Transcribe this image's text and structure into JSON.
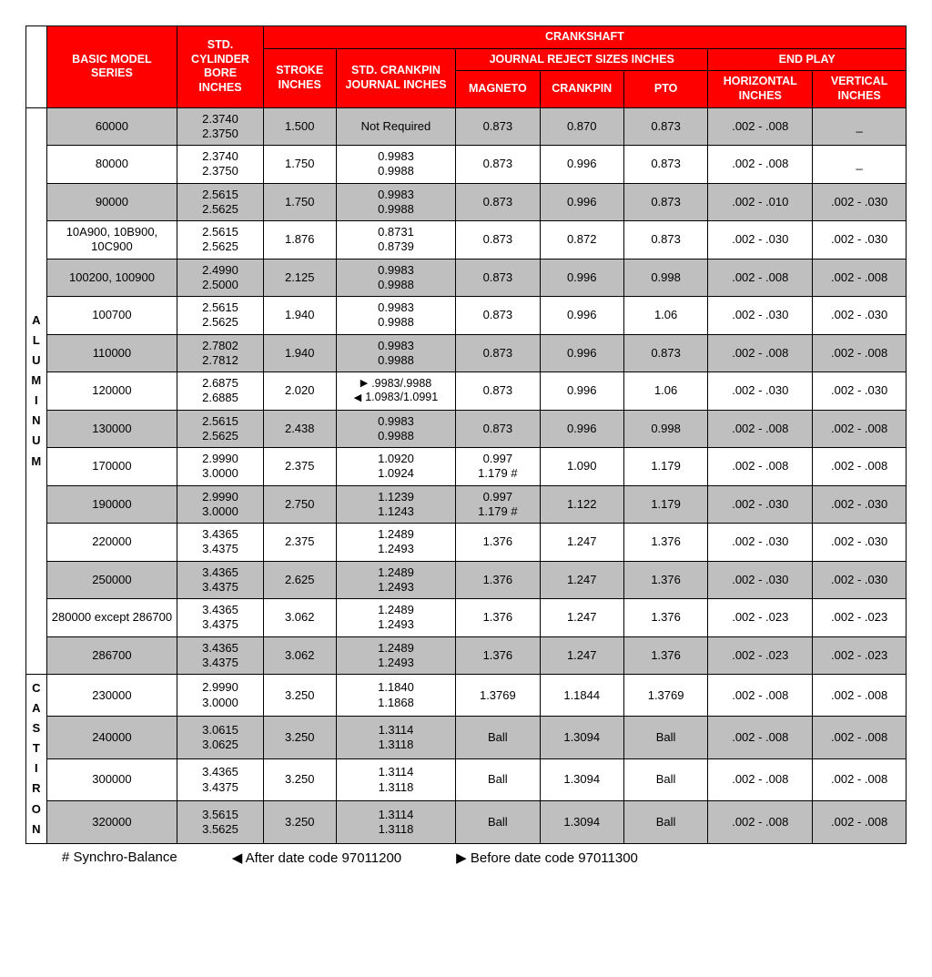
{
  "header": {
    "crankshaft": "CRANKSHAFT",
    "journal_reject": "JOURNAL REJECT SIZES INCHES",
    "end_play": "END PLAY",
    "model": "BASIC MODEL SERIES",
    "bore": "STD. CYLINDER BORE INCHES",
    "stroke": "STROKE INCHES",
    "crankpin_journal": "STD. CRANKPIN JOURNAL INCHES",
    "magneto": "MAGNETO",
    "crankpin": "CRANKPIN",
    "pto": "PTO",
    "horizontal": "HORIZONTAL INCHES",
    "vertical": "VERTICAL INCHES",
    "colors": {
      "header_bg": "#ff0000",
      "header_fg": "#ffffff",
      "border": "#000000",
      "shaded_bg": "#bfbfbf",
      "plain_bg": "#ffffff"
    }
  },
  "side_labels": {
    "aluminum": "ALUMINUM",
    "cast_iron": "CAST IRON"
  },
  "footnotes": {
    "synchro": "# Synchro-Balance",
    "after": "◀ After date code 97011200",
    "before": "▶ Before date code 97011300"
  },
  "rows": [
    {
      "shade": true,
      "model": "60000",
      "bore": [
        "2.3740",
        "2.3750"
      ],
      "stroke": "1.500",
      "cp": [
        "Not Required"
      ],
      "mag": "0.873",
      "ckpin": "0.870",
      "pto": "0.873",
      "h": ".002 - .008",
      "v": "_"
    },
    {
      "shade": false,
      "model": "80000",
      "bore": [
        "2.3740",
        "2.3750"
      ],
      "stroke": "1.750",
      "cp": [
        "0.9983",
        "0.9988"
      ],
      "mag": "0.873",
      "ckpin": "0.996",
      "pto": "0.873",
      "h": ".002 - .008",
      "v": "_"
    },
    {
      "shade": true,
      "model": "90000",
      "bore": [
        "2.5615",
        "2.5625"
      ],
      "stroke": "1.750",
      "cp": [
        "0.9983",
        "0.9988"
      ],
      "mag": "0.873",
      "ckpin": "0.996",
      "pto": "0.873",
      "h": ".002 - .010",
      "v": ".002 - .030"
    },
    {
      "shade": false,
      "model": "10A900, 10B900, 10C900",
      "bore": [
        "2.5615",
        "2.5625"
      ],
      "stroke": "1.876",
      "cp": [
        "0.8731",
        "0.8739"
      ],
      "mag": "0.873",
      "ckpin": "0.872",
      "pto": "0.873",
      "h": ".002 - .030",
      "v": ".002 - .030"
    },
    {
      "shade": true,
      "model": "100200, 100900",
      "bore": [
        "2.4990",
        "2.5000"
      ],
      "stroke": "2.125",
      "cp": [
        "0.9983",
        "0.9988"
      ],
      "mag": "0.873",
      "ckpin": "0.996",
      "pto": "0.998",
      "h": ".002 - .008",
      "v": ".002 - .008"
    },
    {
      "shade": false,
      "model": "100700",
      "bore": [
        "2.5615",
        "2.5625"
      ],
      "stroke": "1.940",
      "cp": [
        "0.9983",
        "0.9988"
      ],
      "mag": "0.873",
      "ckpin": "0.996",
      "pto": "1.06",
      "h": ".002 - .030",
      "v": ".002 - .030"
    },
    {
      "shade": true,
      "model": "110000",
      "bore": [
        "2.7802",
        "2.7812"
      ],
      "stroke": "1.940",
      "cp": [
        "0.9983",
        "0.9988"
      ],
      "mag": "0.873",
      "ckpin": "0.996",
      "pto": "0.873",
      "h": ".002 - .008",
      "v": ".002 - .008"
    },
    {
      "shade": false,
      "model": "120000",
      "bore": [
        "2.6875",
        "2.6885"
      ],
      "stroke": "2.020",
      "cp_special": {
        "before": ".9983/.9988",
        "after": "1.0983/1.0991"
      },
      "mag": "0.873",
      "ckpin": "0.996",
      "pto": "1.06",
      "h": ".002 - .030",
      "v": ".002 - .030"
    },
    {
      "shade": true,
      "model": "130000",
      "bore": [
        "2.5615",
        "2.5625"
      ],
      "stroke": "2.438",
      "cp": [
        "0.9983",
        "0.9988"
      ],
      "mag": "0.873",
      "ckpin": "0.996",
      "pto": "0.998",
      "h": ".002 - .008",
      "v": ".002 - .008"
    },
    {
      "shade": false,
      "model": "170000",
      "bore": [
        "2.9990",
        "3.0000"
      ],
      "stroke": "2.375",
      "cp": [
        "1.0920",
        "1.0924"
      ],
      "mag": [
        "0.997",
        "1.179 #"
      ],
      "ckpin": "1.090",
      "pto": "1.179",
      "h": ".002 - .008",
      "v": ".002 - .008"
    },
    {
      "shade": true,
      "model": "190000",
      "bore": [
        "2.9990",
        "3.0000"
      ],
      "stroke": "2.750",
      "cp": [
        "1.1239",
        "1.1243"
      ],
      "mag": [
        "0.997",
        "1.179 #"
      ],
      "ckpin": "1.122",
      "pto": "1.179",
      "h": ".002 - .030",
      "v": ".002 - .030"
    },
    {
      "shade": false,
      "model": "220000",
      "bore": [
        "3.4365",
        "3.4375"
      ],
      "stroke": "2.375",
      "cp": [
        "1.2489",
        "1.2493"
      ],
      "mag": "1.376",
      "ckpin": "1.247",
      "pto": "1.376",
      "h": ".002 - .030",
      "v": ".002 - .030"
    },
    {
      "shade": true,
      "model": "250000",
      "bore": [
        "3.4365",
        "3.4375"
      ],
      "stroke": "2.625",
      "cp": [
        "1.2489",
        "1.2493"
      ],
      "mag": "1.376",
      "ckpin": "1.247",
      "pto": "1.376",
      "h": ".002 - .030",
      "v": ".002 - .030"
    },
    {
      "shade": false,
      "model": "280000 except 286700",
      "bore": [
        "3.4365",
        "3.4375"
      ],
      "stroke": "3.062",
      "cp": [
        "1.2489",
        "1.2493"
      ],
      "mag": "1.376",
      "ckpin": "1.247",
      "pto": "1.376",
      "h": ".002 - .023",
      "v": ".002 - .023"
    },
    {
      "shade": true,
      "model": "286700",
      "bore": [
        "3.4365",
        "3.4375"
      ],
      "stroke": "3.062",
      "cp": [
        "1.2489",
        "1.2493"
      ],
      "mag": "1.376",
      "ckpin": "1.247",
      "pto": "1.376",
      "h": ".002 - .023",
      "v": ".002 - .023"
    },
    {
      "shade": false,
      "model": "230000",
      "bore": [
        "2.9990",
        "3.0000"
      ],
      "stroke": "3.250",
      "cp": [
        "1.1840",
        "1.1868"
      ],
      "mag": "1.3769",
      "ckpin": "1.1844",
      "pto": "1.3769",
      "h": ".002 - .008",
      "v": ".002 - .008"
    },
    {
      "shade": true,
      "model": "240000",
      "bore": [
        "3.0615",
        "3.0625"
      ],
      "stroke": "3.250",
      "cp": [
        "1.3114",
        "1.3118"
      ],
      "mag": "Ball",
      "ckpin": "1.3094",
      "pto": "Ball",
      "h": ".002 - .008",
      "v": ".002 - .008"
    },
    {
      "shade": false,
      "model": "300000",
      "bore": [
        "3.4365",
        "3.4375"
      ],
      "stroke": "3.250",
      "cp": [
        "1.3114",
        "1.3118"
      ],
      "mag": "Ball",
      "ckpin": "1.3094",
      "pto": "Ball",
      "h": ".002 - .008",
      "v": ".002 - .008"
    },
    {
      "shade": true,
      "model": "320000",
      "bore": [
        "3.5615",
        "3.5625"
      ],
      "stroke": "3.250",
      "cp": [
        "1.3114",
        "1.3118"
      ],
      "mag": "Ball",
      "ckpin": "1.3094",
      "pto": "Ball",
      "h": ".002 - .008",
      "v": ".002 - .008"
    }
  ],
  "groups": {
    "aluminum_rows": 15,
    "cast_iron_rows": 4
  }
}
